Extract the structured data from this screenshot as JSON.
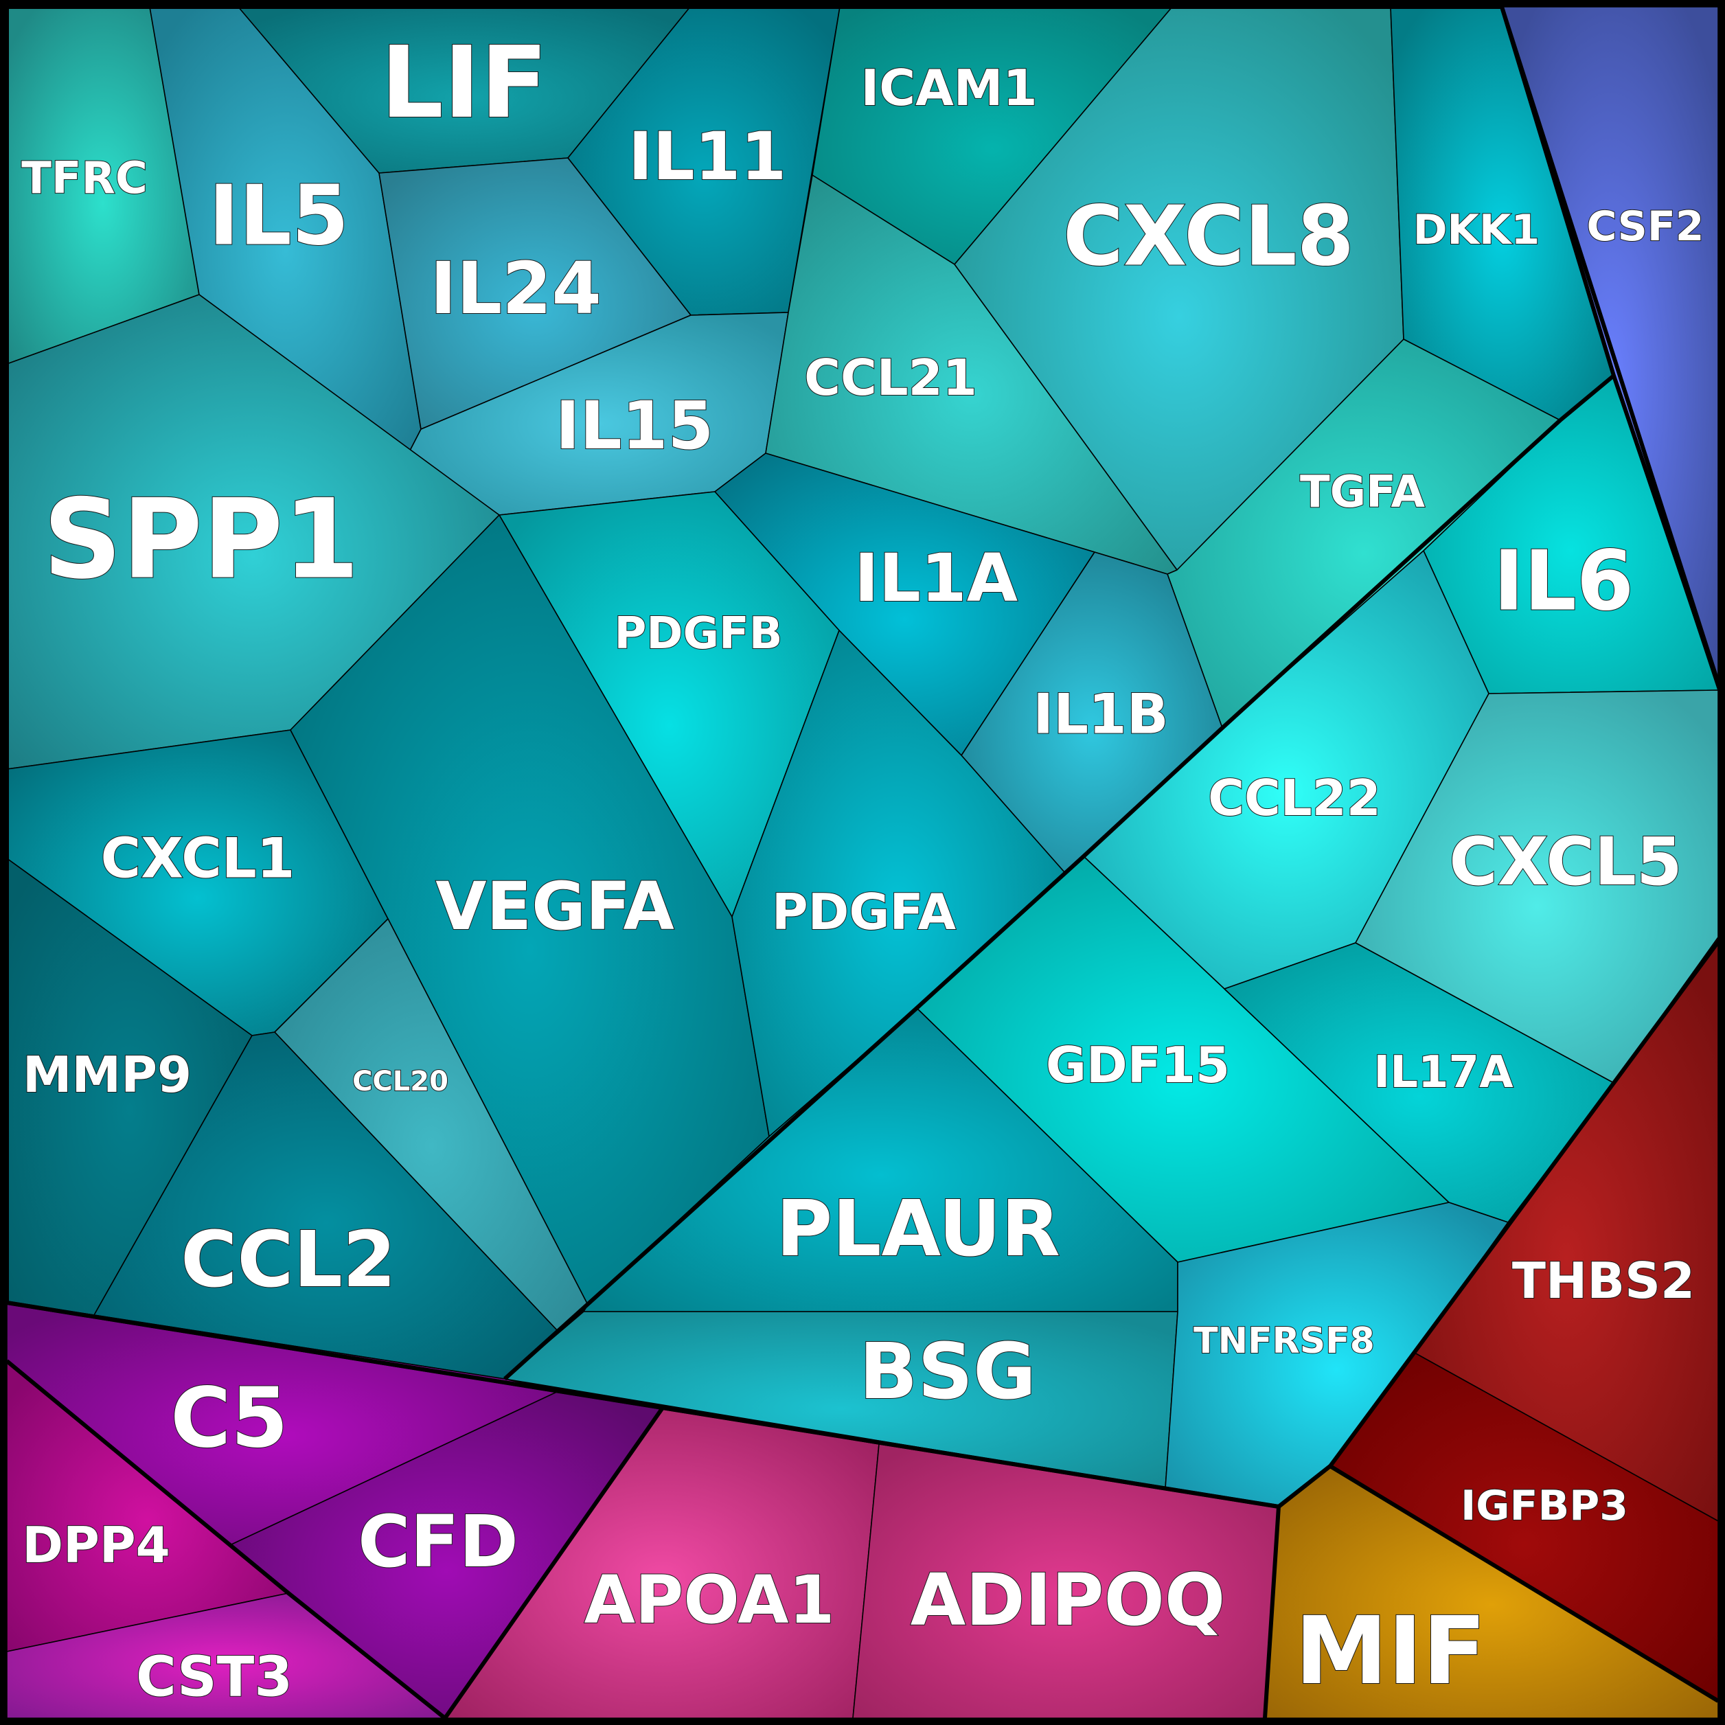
{
  "diagram": {
    "type": "voronoi-treemap",
    "groups": [
      {
        "id": "teal",
        "color": "#0e9aa7"
      },
      {
        "id": "blue",
        "color": "#4a5cc8"
      },
      {
        "id": "purple",
        "color": "#8a0a9a"
      },
      {
        "id": "pink",
        "color": "#c0306e"
      },
      {
        "id": "gold",
        "color": "#c98a06"
      },
      {
        "id": "red",
        "color": "#8e1212"
      }
    ],
    "cells": [
      {
        "label": "TFRC",
        "group": "teal",
        "colors": [
          "#2de0cc",
          "#1f8a86"
        ]
      },
      {
        "label": "IL5",
        "group": "teal",
        "colors": [
          "#36bcd6",
          "#1e7f94"
        ]
      },
      {
        "label": "LIF",
        "group": "teal",
        "colors": [
          "#12a2aa",
          "#0a7078"
        ]
      },
      {
        "label": "IL11",
        "group": "teal",
        "colors": [
          "#04a7ba",
          "#03707e"
        ]
      },
      {
        "label": "ICAM1",
        "group": "teal",
        "colors": [
          "#05b3ad",
          "#07827e"
        ]
      },
      {
        "label": "IL24",
        "group": "teal",
        "colors": [
          "#3ab8d6",
          "#2a7f92"
        ]
      },
      {
        "label": "IL15",
        "group": "teal",
        "colors": [
          "#4ac8e0",
          "#2a93a5"
        ]
      },
      {
        "label": "CXCL8",
        "group": "teal",
        "colors": [
          "#36d0e0",
          "#24908f"
        ]
      },
      {
        "label": "DKK1",
        "group": "teal",
        "colors": [
          "#04cfe0",
          "#037c86"
        ]
      },
      {
        "label": "CSF2",
        "group": "blue",
        "colors": [
          "#6a80ff",
          "#3d4e9c"
        ]
      },
      {
        "label": "CCL21",
        "group": "teal",
        "colors": [
          "#36d4d0",
          "#24928e"
        ]
      },
      {
        "label": "SPP1",
        "group": "teal",
        "colors": [
          "#30d0d6",
          "#1d7f86"
        ]
      },
      {
        "label": "TGFA",
        "group": "teal",
        "colors": [
          "#30e0d0",
          "#20a09a"
        ]
      },
      {
        "label": "IL6",
        "group": "teal",
        "colors": [
          "#06e2e0",
          "#03a6a6"
        ]
      },
      {
        "label": "IL1A",
        "group": "teal",
        "colors": [
          "#02c0d8",
          "#03778a"
        ]
      },
      {
        "label": "PDGFB",
        "group": "teal",
        "colors": [
          "#06e0e4",
          "#05989e"
        ]
      },
      {
        "label": "IL1B",
        "group": "teal",
        "colors": [
          "#30c8e0",
          "#1d7c8e"
        ]
      },
      {
        "label": "CCL22",
        "group": "teal",
        "colors": [
          "#30fff8",
          "#1aa4b0"
        ]
      },
      {
        "label": "CXCL5",
        "group": "teal",
        "colors": [
          "#50ece8",
          "#3aa4a8"
        ]
      },
      {
        "label": "CXCL1",
        "group": "teal",
        "colors": [
          "#04c0d0",
          "#036f7c"
        ]
      },
      {
        "label": "VEGFA",
        "group": "teal",
        "colors": [
          "#03a6b6",
          "#02717c"
        ]
      },
      {
        "label": "PDGFA",
        "group": "teal",
        "colors": [
          "#04c2d6",
          "#03808c"
        ]
      },
      {
        "label": "MMP9",
        "group": "teal",
        "colors": [
          "#047e8c",
          "#035f6a"
        ]
      },
      {
        "label": "CCL20",
        "group": "teal",
        "colors": [
          "#40b8c4",
          "#2d8a96"
        ]
      },
      {
        "label": "GDF15",
        "group": "teal",
        "colors": [
          "#03eae6",
          "#03a4a2"
        ]
      },
      {
        "label": "IL17A",
        "group": "teal",
        "colors": [
          "#04d4d8",
          "#039a9e"
        ]
      },
      {
        "label": "CCL2",
        "group": "teal",
        "colors": [
          "#048fa0",
          "#035f6e"
        ]
      },
      {
        "label": "PLAUR",
        "group": "teal",
        "colors": [
          "#04bed0",
          "#037e8a"
        ]
      },
      {
        "label": "THBS2",
        "group": "red",
        "colors": [
          "#b82020",
          "#7a1010"
        ]
      },
      {
        "label": "BSG",
        "group": "teal",
        "colors": [
          "#1cc2d0",
          "#158a94"
        ]
      },
      {
        "label": "TNFRSF8",
        "group": "teal",
        "colors": [
          "#20e4f8",
          "#1890a8"
        ]
      },
      {
        "label": "C5",
        "group": "purple",
        "colors": [
          "#b00cbc",
          "#6a0a78"
        ]
      },
      {
        "label": "CFD",
        "group": "purple",
        "colors": [
          "#a00cb4",
          "#5e0a6e"
        ]
      },
      {
        "label": "DPP4",
        "group": "purple",
        "colors": [
          "#d010a0",
          "#8a066e"
        ]
      },
      {
        "label": "APOA1",
        "group": "pink",
        "colors": [
          "#f04aa4",
          "#a02262"
        ]
      },
      {
        "label": "ADIPOQ",
        "group": "pink",
        "colors": [
          "#e23a90",
          "#a02462"
        ]
      },
      {
        "label": "IGFBP3",
        "group": "red",
        "colors": [
          "#a00a0a",
          "#6e0000"
        ]
      },
      {
        "label": "MIF",
        "group": "gold",
        "colors": [
          "#e0a008",
          "#9c6806"
        ]
      },
      {
        "label": "CST3",
        "group": "purple",
        "colors": [
          "#e020c0",
          "#861a92"
        ]
      }
    ]
  }
}
